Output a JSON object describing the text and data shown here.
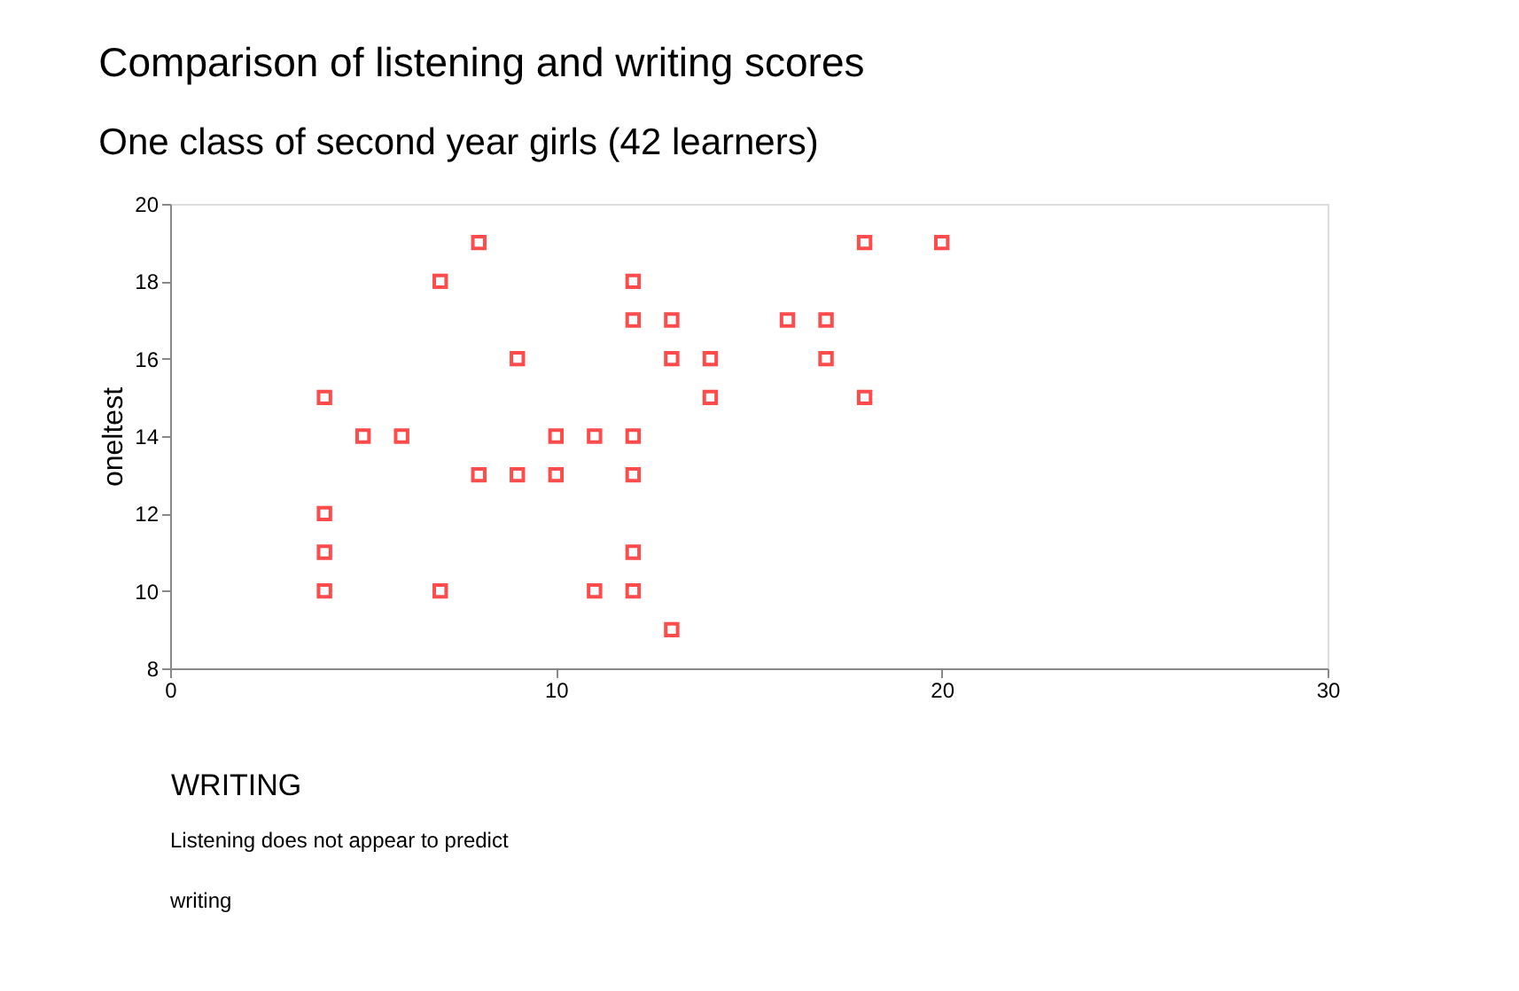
{
  "chart_data": {
    "type": "scatter",
    "title": "Comparison of listening and writing scores",
    "subtitle": "One class of second year girls (42 learners)",
    "xlabel": "WRITING",
    "ylabel": "oneltest",
    "annotations": [
      "Listening does not appear to predict\nwriting"
    ],
    "x": [
      4,
      4,
      4,
      4,
      5,
      6,
      7,
      7,
      8,
      8,
      9,
      9,
      10,
      10,
      11,
      11,
      12,
      12,
      12,
      12,
      12,
      12,
      13,
      13,
      13,
      14,
      14,
      16,
      17,
      17,
      18,
      18,
      20
    ],
    "series": [
      {
        "color": "#ff0000",
        "values": [
          15,
          12,
          11,
          10,
          14,
          14,
          18,
          10,
          19,
          13,
          16,
          13,
          14,
          13,
          14,
          10,
          18,
          17,
          14,
          13,
          11,
          10,
          17,
          16,
          9,
          16,
          15,
          17,
          17,
          16,
          19,
          15,
          19
        ]
      }
    ],
    "xlim": [
      0,
      30
    ],
    "xticks": [
      0,
      10,
      20,
      30
    ],
    "ylim": [
      8,
      20
    ],
    "yticks": [
      8,
      10,
      12,
      14,
      16,
      18,
      20
    ],
    "marker": "square",
    "grid": false,
    "legend": false
  }
}
